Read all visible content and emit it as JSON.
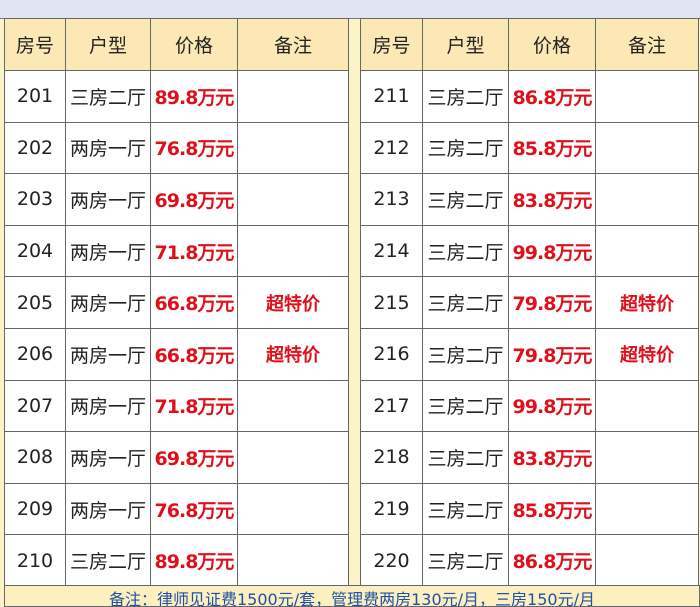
{
  "headers": [
    "房号",
    "户型",
    "价格",
    "备注"
  ],
  "left_rows": [
    [
      "201",
      "三房二厅",
      "89.8万元",
      ""
    ],
    [
      "202",
      "两房一厅",
      "76.8万元",
      ""
    ],
    [
      "203",
      "两房一厅",
      "69.8万元",
      ""
    ],
    [
      "204",
      "两房一厅",
      "71.8万元",
      ""
    ],
    [
      "205",
      "两房一厅",
      "66.8万元",
      "超特价"
    ],
    [
      "206",
      "两房一厅",
      "66.8万元",
      "超特价"
    ],
    [
      "207",
      "两房一厅",
      "71.8万元",
      ""
    ],
    [
      "208",
      "两房一厅",
      "69.8万元",
      ""
    ],
    [
      "209",
      "两房一厅",
      "76.8万元",
      ""
    ],
    [
      "210",
      "三房二厅",
      "89.8万元",
      ""
    ]
  ],
  "right_rows": [
    [
      "211",
      "三房二厅",
      "86.8万元",
      ""
    ],
    [
      "212",
      "三房二厅",
      "85.8万元",
      ""
    ],
    [
      "213",
      "三房二厅",
      "83.8万元",
      ""
    ],
    [
      "214",
      "三房二厅",
      "99.8万元",
      ""
    ],
    [
      "215",
      "三房二厅",
      "79.8万元",
      "超特价"
    ],
    [
      "216",
      "三房二厅",
      "79.8万元",
      "超特价"
    ],
    [
      "217",
      "三房二厅",
      "99.8万元",
      ""
    ],
    [
      "218",
      "三房二厅",
      "83.8万元",
      ""
    ],
    [
      "219",
      "三房二厅",
      "85.8万元",
      ""
    ],
    [
      "220",
      "三房二厅",
      "86.8万元",
      ""
    ]
  ],
  "footer_note": "备注：律师见证费1500元/套，管理费两房130元/月，三房150元/月",
  "colors": {
    "price": "#e0101a",
    "header_bg": "#fbe8b4",
    "note_text": "#1e50a8"
  }
}
